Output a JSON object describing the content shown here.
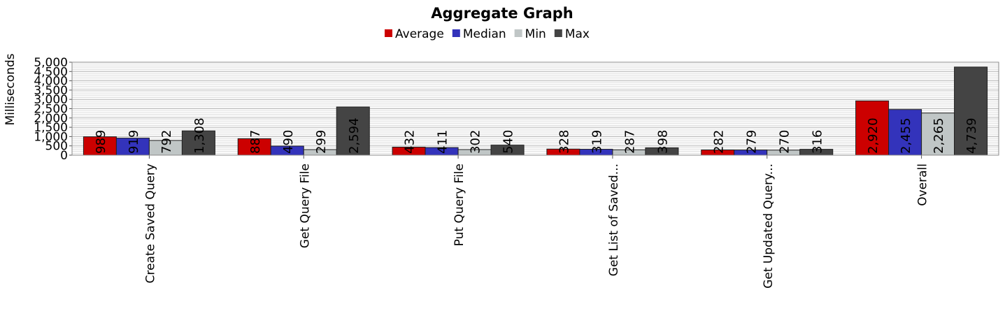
{
  "chart_data": {
    "type": "bar",
    "title": "Aggregate Graph",
    "xlabel": "",
    "ylabel": "Milliseconds",
    "ylim": [
      0,
      5000
    ],
    "yticks": [
      "0",
      "500",
      "1,000",
      "1,500",
      "2,000",
      "2,500",
      "3,000",
      "3,500",
      "4,000",
      "4,500",
      "5,000"
    ],
    "grid": true,
    "legend_position": "top-center",
    "categories": [
      "Create Saved Query",
      "Get Query File",
      "Put Query File",
      "Get List of Saved...",
      "Get Updated Query...",
      "Overall"
    ],
    "series": [
      {
        "name": "Average",
        "color": "#cc0000",
        "values": [
          989,
          887,
          432,
          328,
          282,
          2920
        ],
        "labels": [
          "989",
          "887",
          "432",
          "328",
          "282",
          "2,920"
        ]
      },
      {
        "name": "Median",
        "color": "#3333bb",
        "values": [
          919,
          490,
          411,
          319,
          279,
          2455
        ],
        "labels": [
          "919",
          "490",
          "411",
          "319",
          "279",
          "2,455"
        ]
      },
      {
        "name": "Min",
        "color": "#c0c6c6",
        "values": [
          792,
          299,
          302,
          287,
          270,
          2265
        ],
        "labels": [
          "792",
          "299",
          "302",
          "287",
          "270",
          "2,265"
        ]
      },
      {
        "name": "Max",
        "color": "#444444",
        "values": [
          1308,
          2594,
          540,
          398,
          316,
          4739
        ],
        "labels": [
          "1,308",
          "2,594",
          "540",
          "398",
          "316",
          "4,739"
        ]
      }
    ]
  }
}
